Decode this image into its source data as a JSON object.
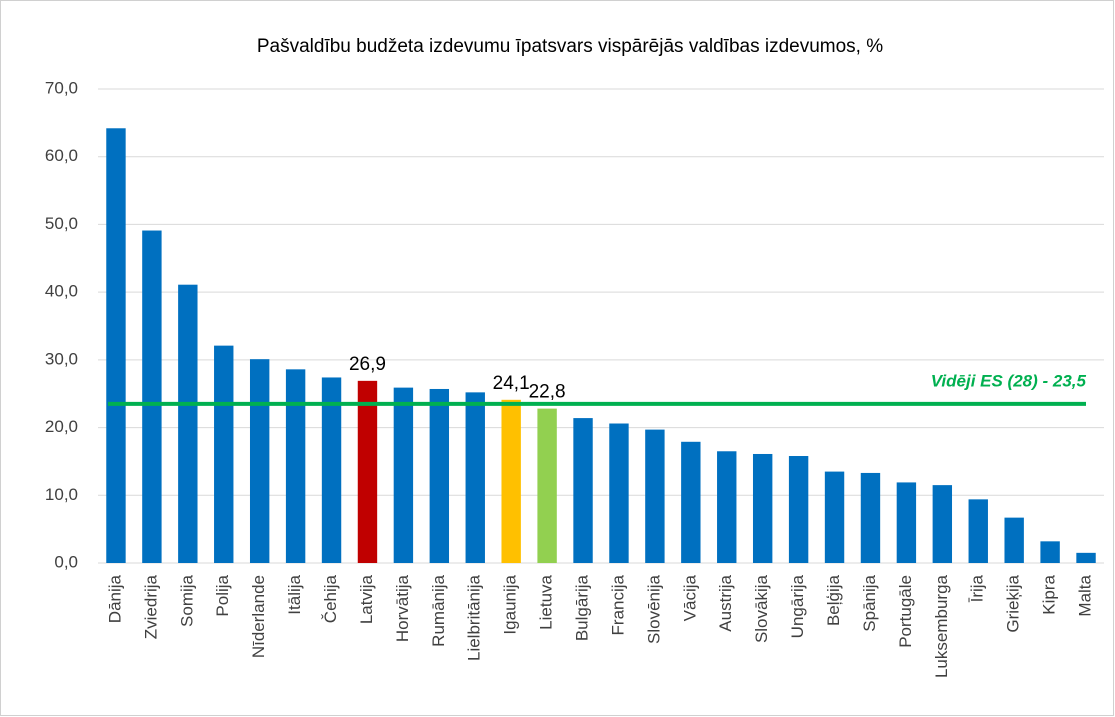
{
  "chart_data": {
    "type": "bar",
    "title": "Pašvaldību budžeta izdevumu īpatsvars vispārējās valdības izdevumos, %",
    "categories": [
      "Dānija",
      "Zviedrija",
      "Somija",
      "Polija",
      "Nīderlande",
      "Itālija",
      "Čehija",
      "Latvija",
      "Horvātija",
      "Rumānija",
      "Lielbritānija",
      "Igaunija",
      "Lietuva",
      "Bulgārija",
      "Francija",
      "Slovēnija",
      "Vācija",
      "Austrija",
      "Slovākija",
      "Ungārija",
      "Beļģija",
      "Spānija",
      "Portugāle",
      "Luksemburga",
      "Īrija",
      "Grieķija",
      "Kipra",
      "Malta"
    ],
    "values": [
      64.2,
      49.1,
      41.1,
      32.1,
      30.1,
      28.6,
      27.4,
      26.9,
      25.9,
      25.7,
      25.2,
      24.1,
      22.8,
      21.4,
      20.6,
      19.7,
      17.9,
      16.5,
      16.1,
      15.8,
      13.5,
      13.3,
      11.9,
      11.5,
      9.4,
      6.7,
      3.2,
      1.5
    ],
    "value_labels": [
      null,
      null,
      null,
      null,
      null,
      null,
      null,
      "26,9",
      null,
      null,
      null,
      "24,1",
      "22,8",
      null,
      null,
      null,
      null,
      null,
      null,
      null,
      null,
      null,
      null,
      null,
      null,
      null,
      null,
      null
    ],
    "colors": [
      "#0070c0",
      "#0070c0",
      "#0070c0",
      "#0070c0",
      "#0070c0",
      "#0070c0",
      "#0070c0",
      "#c00000",
      "#0070c0",
      "#0070c0",
      "#0070c0",
      "#ffc000",
      "#92d050",
      "#0070c0",
      "#0070c0",
      "#0070c0",
      "#0070c0",
      "#0070c0",
      "#0070c0",
      "#0070c0",
      "#0070c0",
      "#0070c0",
      "#0070c0",
      "#0070c0",
      "#0070c0",
      "#0070c0",
      "#0070c0",
      "#0070c0"
    ],
    "reference_line": {
      "value": 23.5,
      "label": "Vidēji ES (28) - 23,5",
      "color": "#00b050"
    },
    "ylim": [
      0,
      70
    ],
    "yticks": [
      {
        "value": 0,
        "label": "0,0"
      },
      {
        "value": 10,
        "label": "10,0"
      },
      {
        "value": 20,
        "label": "20,0"
      },
      {
        "value": 30,
        "label": "30,0"
      },
      {
        "value": 40,
        "label": "40,0"
      },
      {
        "value": 50,
        "label": "50,0"
      },
      {
        "value": 60,
        "label": "60,0"
      },
      {
        "value": 70,
        "label": "70,0"
      }
    ],
    "grid": true
  }
}
